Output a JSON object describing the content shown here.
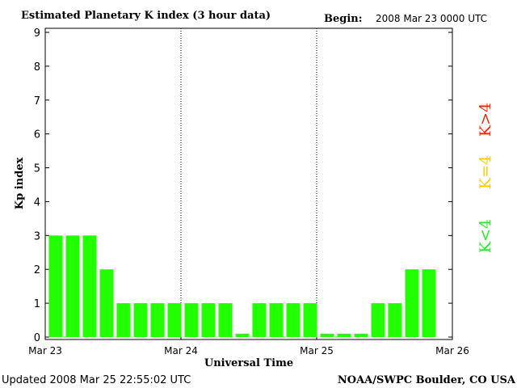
{
  "chart_data": {
    "type": "bar",
    "title": "Estimated Planetary K index (3 hour data)",
    "begin_label": "Begin:",
    "begin_value": "2008 Mar 23 0000 UTC",
    "ylabel": "Kp index",
    "xlabel": "Universal Time",
    "ylim": [
      0,
      9
    ],
    "y_ticks": [
      "0",
      "1",
      "2",
      "3",
      "4",
      "5",
      "6",
      "7",
      "8",
      "9"
    ],
    "x_ticks": [
      "Mar 23",
      "Mar 24",
      "Mar 25",
      "Mar 26"
    ],
    "values": [
      3,
      3,
      3,
      2,
      1,
      1,
      1,
      1,
      1,
      1,
      1,
      0.1,
      1,
      1,
      1,
      1,
      0.1,
      0.1,
      0.1,
      1,
      1,
      2,
      2
    ],
    "bar_color": "#22ff00",
    "legend": [
      {
        "label": "K<4",
        "color": "#22ee22"
      },
      {
        "label": "K=4",
        "color": "#ffcc00"
      },
      {
        "label": "K>4",
        "color": "#ff2200"
      }
    ],
    "grid": false,
    "day_separators": true
  },
  "footer": {
    "updated": "Updated 2008 Mar 25 22:55:02 UTC",
    "source": "NOAA/SWPC Boulder, CO USA"
  }
}
